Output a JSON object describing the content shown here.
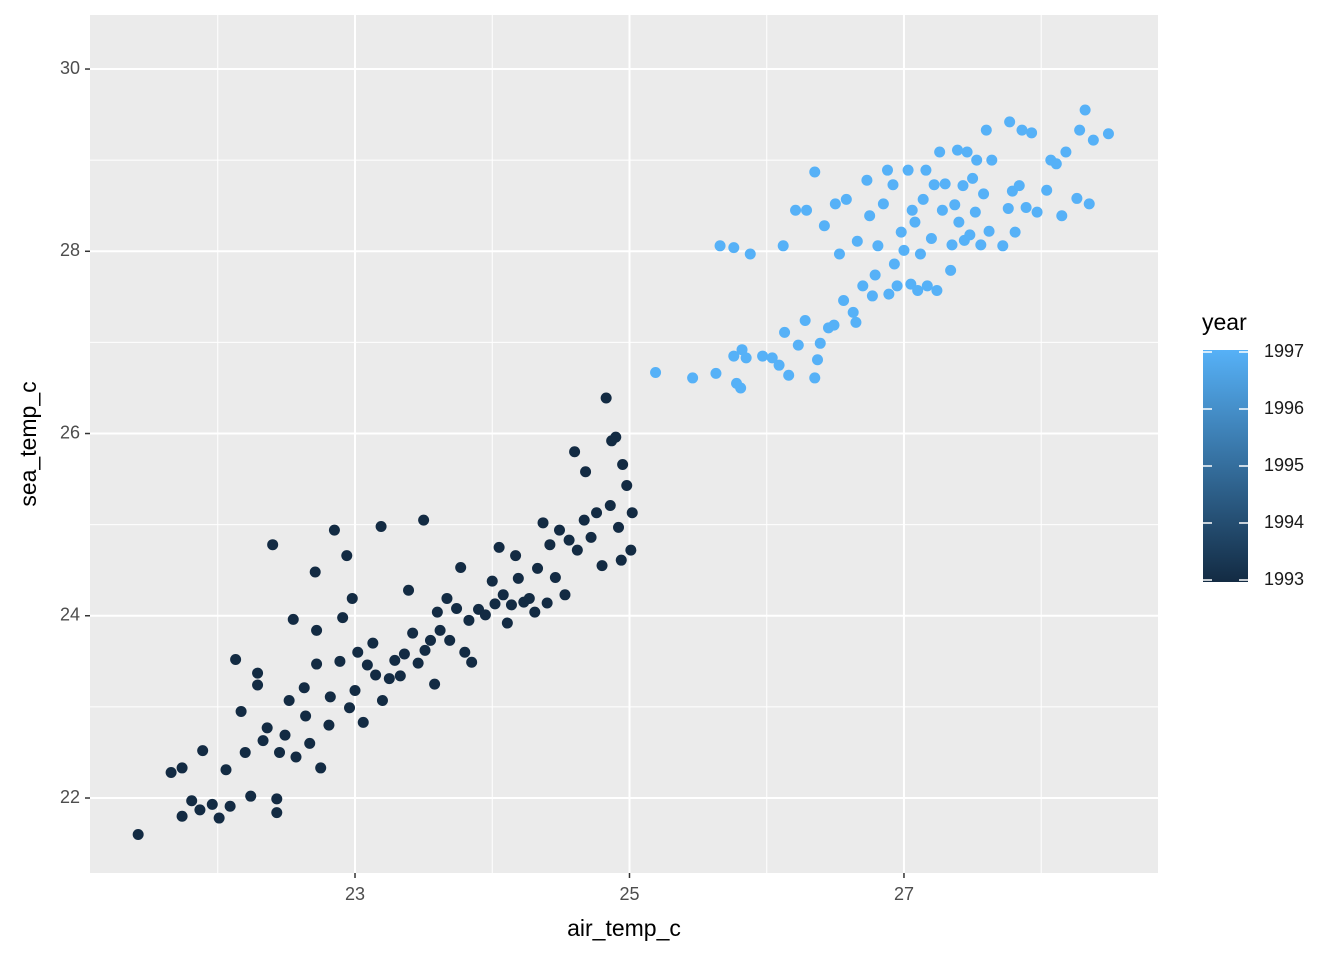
{
  "chart_data": {
    "type": "scatter",
    "x_label": "air_temp_c",
    "y_label": "sea_temp_c",
    "xlim": [
      21.069,
      28.851
    ],
    "xticks": [
      23,
      25,
      27
    ],
    "ylim": [
      21.177,
      30.593
    ],
    "yticks": [
      22,
      24,
      26,
      28,
      30
    ],
    "grid": true,
    "x": [
      21.42,
      21.66,
      21.74,
      21.74,
      21.81,
      21.87,
      21.89,
      21.96,
      22.01,
      22.06,
      22.09,
      22.13,
      22.17,
      22.2,
      22.24,
      22.29,
      22.29,
      22.33,
      22.36,
      22.4,
      22.43,
      22.43,
      22.45,
      22.49,
      22.52,
      22.55,
      22.57,
      22.63,
      22.64,
      22.67,
      22.71,
      22.72,
      22.72,
      22.75,
      22.81,
      22.82,
      22.85,
      22.89,
      22.91,
      22.94,
      22.96,
      22.98,
      23.0,
      23.02,
      23.06,
      23.09,
      23.13,
      23.15,
      23.19,
      23.2,
      23.25,
      23.29,
      23.33,
      23.36,
      23.39,
      23.42,
      23.46,
      23.5,
      23.51,
      23.55,
      23.58,
      23.6,
      23.62,
      23.67,
      23.69,
      23.74,
      23.77,
      23.8,
      23.83,
      23.85,
      23.9,
      23.95,
      24.0,
      24.02,
      24.05,
      24.08,
      24.11,
      24.14,
      24.17,
      24.19,
      24.23,
      24.27,
      24.31,
      24.33,
      24.37,
      24.4,
      24.42,
      24.46,
      24.49,
      24.53,
      24.56,
      24.6,
      24.62,
      24.67,
      24.68,
      24.72,
      24.76,
      24.8,
      24.83,
      24.86,
      24.87,
      24.9,
      24.92,
      24.94,
      24.95,
      24.98,
      25.01,
      25.02,
      25.19,
      25.46,
      25.63,
      25.66,
      25.76,
      25.76,
      25.78,
      25.81,
      25.82,
      25.85,
      25.88,
      25.97,
      26.04,
      26.09,
      26.12,
      26.13,
      26.16,
      26.21,
      26.23,
      26.28,
      26.29,
      26.35,
      26.35,
      26.37,
      26.39,
      26.42,
      26.45,
      26.49,
      26.5,
      26.53,
      26.56,
      26.58,
      26.63,
      26.65,
      26.66,
      26.7,
      26.73,
      26.75,
      26.77,
      26.79,
      26.81,
      26.85,
      26.88,
      26.89,
      26.92,
      26.93,
      26.95,
      26.98,
      27.0,
      27.03,
      27.05,
      27.06,
      27.08,
      27.1,
      27.12,
      27.14,
      27.16,
      27.17,
      27.2,
      27.22,
      27.24,
      27.26,
      27.28,
      27.3,
      27.34,
      27.35,
      27.37,
      27.39,
      27.4,
      27.43,
      27.44,
      27.46,
      27.48,
      27.5,
      27.52,
      27.53,
      27.56,
      27.58,
      27.6,
      27.62,
      27.64,
      27.72,
      27.76,
      27.77,
      27.79,
      27.81,
      27.84,
      27.86,
      27.89,
      27.93,
      27.97,
      28.04,
      28.07,
      28.11,
      28.15,
      28.18,
      28.26,
      28.28,
      28.32,
      28.35,
      28.38,
      28.49
    ],
    "y": [
      21.6,
      22.28,
      22.33,
      21.8,
      21.97,
      21.87,
      22.52,
      21.93,
      21.78,
      22.31,
      21.91,
      23.52,
      22.95,
      22.5,
      22.02,
      23.37,
      23.24,
      22.63,
      22.77,
      24.78,
      21.99,
      21.84,
      22.5,
      22.69,
      23.07,
      23.96,
      22.45,
      23.21,
      22.9,
      22.6,
      24.48,
      23.84,
      23.47,
      22.33,
      22.8,
      23.11,
      24.94,
      23.5,
      23.98,
      24.66,
      22.99,
      24.19,
      23.18,
      23.6,
      22.83,
      23.46,
      23.7,
      23.35,
      24.98,
      23.07,
      23.31,
      23.51,
      23.34,
      23.58,
      24.28,
      23.81,
      23.48,
      25.05,
      23.62,
      23.73,
      23.25,
      24.04,
      23.84,
      24.19,
      23.73,
      24.08,
      24.53,
      23.6,
      23.95,
      23.49,
      24.07,
      24.01,
      24.38,
      24.13,
      24.75,
      24.23,
      23.92,
      24.12,
      24.66,
      24.41,
      24.15,
      24.19,
      24.04,
      24.52,
      25.02,
      24.14,
      24.78,
      24.42,
      24.94,
      24.23,
      24.83,
      25.8,
      24.72,
      25.05,
      25.58,
      24.86,
      25.13,
      24.55,
      26.39,
      25.21,
      25.92,
      25.96,
      24.97,
      24.61,
      25.66,
      25.43,
      24.72,
      25.13,
      26.67,
      26.61,
      26.66,
      28.06,
      28.04,
      26.85,
      26.55,
      26.5,
      26.92,
      26.83,
      27.97,
      26.85,
      26.83,
      26.75,
      28.06,
      27.11,
      26.64,
      28.45,
      26.97,
      27.24,
      28.45,
      28.87,
      26.61,
      26.81,
      26.99,
      28.28,
      27.16,
      27.19,
      28.52,
      27.97,
      27.46,
      28.57,
      27.33,
      27.22,
      28.11,
      27.62,
      28.78,
      28.39,
      27.51,
      27.74,
      28.06,
      28.52,
      28.89,
      27.53,
      28.73,
      27.86,
      27.62,
      28.21,
      28.01,
      28.89,
      27.64,
      28.45,
      28.32,
      27.57,
      27.97,
      28.57,
      28.89,
      27.62,
      28.14,
      28.73,
      27.57,
      29.09,
      28.45,
      28.74,
      27.79,
      28.07,
      28.51,
      29.11,
      28.32,
      28.72,
      28.12,
      29.09,
      28.18,
      28.8,
      28.43,
      29.0,
      28.07,
      28.63,
      29.33,
      28.22,
      29.0,
      28.06,
      28.47,
      29.42,
      28.66,
      28.21,
      28.72,
      29.33,
      28.48,
      29.3,
      28.43,
      28.67,
      29.0,
      28.96,
      28.39,
      29.09,
      28.58,
      29.33,
      29.55,
      28.52,
      29.22,
      29.29
    ],
    "color_values": [
      1993,
      1993,
      1993,
      1993,
      1993,
      1993,
      1993,
      1993,
      1993,
      1993,
      1993,
      1993,
      1993,
      1993,
      1993,
      1993,
      1993,
      1993,
      1993,
      1993,
      1993,
      1993,
      1993,
      1993,
      1993,
      1993,
      1993,
      1993,
      1993,
      1993,
      1993,
      1993,
      1993,
      1993,
      1993,
      1993,
      1993,
      1993,
      1993,
      1993,
      1993,
      1993,
      1993,
      1993,
      1993,
      1993,
      1993,
      1993,
      1993,
      1993,
      1993,
      1993,
      1993,
      1993,
      1993,
      1993,
      1993,
      1993,
      1993,
      1993,
      1993,
      1993,
      1993,
      1993,
      1993,
      1993,
      1993,
      1993,
      1993,
      1993,
      1993,
      1993,
      1993,
      1993,
      1993,
      1993,
      1993,
      1993,
      1993,
      1993,
      1993,
      1993,
      1993,
      1993,
      1993,
      1993,
      1993,
      1993,
      1993,
      1993,
      1993,
      1993,
      1993,
      1993,
      1993,
      1993,
      1993,
      1993,
      1993,
      1993,
      1993,
      1993,
      1993,
      1993,
      1993,
      1993,
      1993,
      1993,
      1997,
      1997,
      1997,
      1997,
      1997,
      1997,
      1997,
      1997,
      1997,
      1997,
      1997,
      1997,
      1997,
      1997,
      1997,
      1997,
      1997,
      1997,
      1997,
      1997,
      1997,
      1997,
      1997,
      1997,
      1997,
      1997,
      1997,
      1997,
      1997,
      1997,
      1997,
      1997,
      1997,
      1997,
      1997,
      1997,
      1997,
      1997,
      1997,
      1997,
      1997,
      1997,
      1997,
      1997,
      1997,
      1997,
      1997,
      1997,
      1997,
      1997,
      1997,
      1997,
      1997,
      1997,
      1997,
      1997,
      1997,
      1997,
      1997,
      1997,
      1997,
      1997,
      1997,
      1997,
      1997,
      1997,
      1997,
      1997,
      1997,
      1997,
      1997,
      1997,
      1997,
      1997,
      1997,
      1997,
      1997,
      1997,
      1997,
      1997,
      1997,
      1997,
      1997,
      1997,
      1997,
      1997,
      1997,
      1997,
      1997,
      1997,
      1997,
      1997,
      1997,
      1997,
      1997,
      1997,
      1997,
      1997,
      1997,
      1997,
      1997,
      1997
    ],
    "colorbar": {
      "title": "year",
      "range": [
        1993,
        1997
      ],
      "ticks": [
        1993,
        1994,
        1995,
        1996,
        1997
      ],
      "low_color": "#132B43",
      "high_color": "#56B1F7"
    }
  }
}
